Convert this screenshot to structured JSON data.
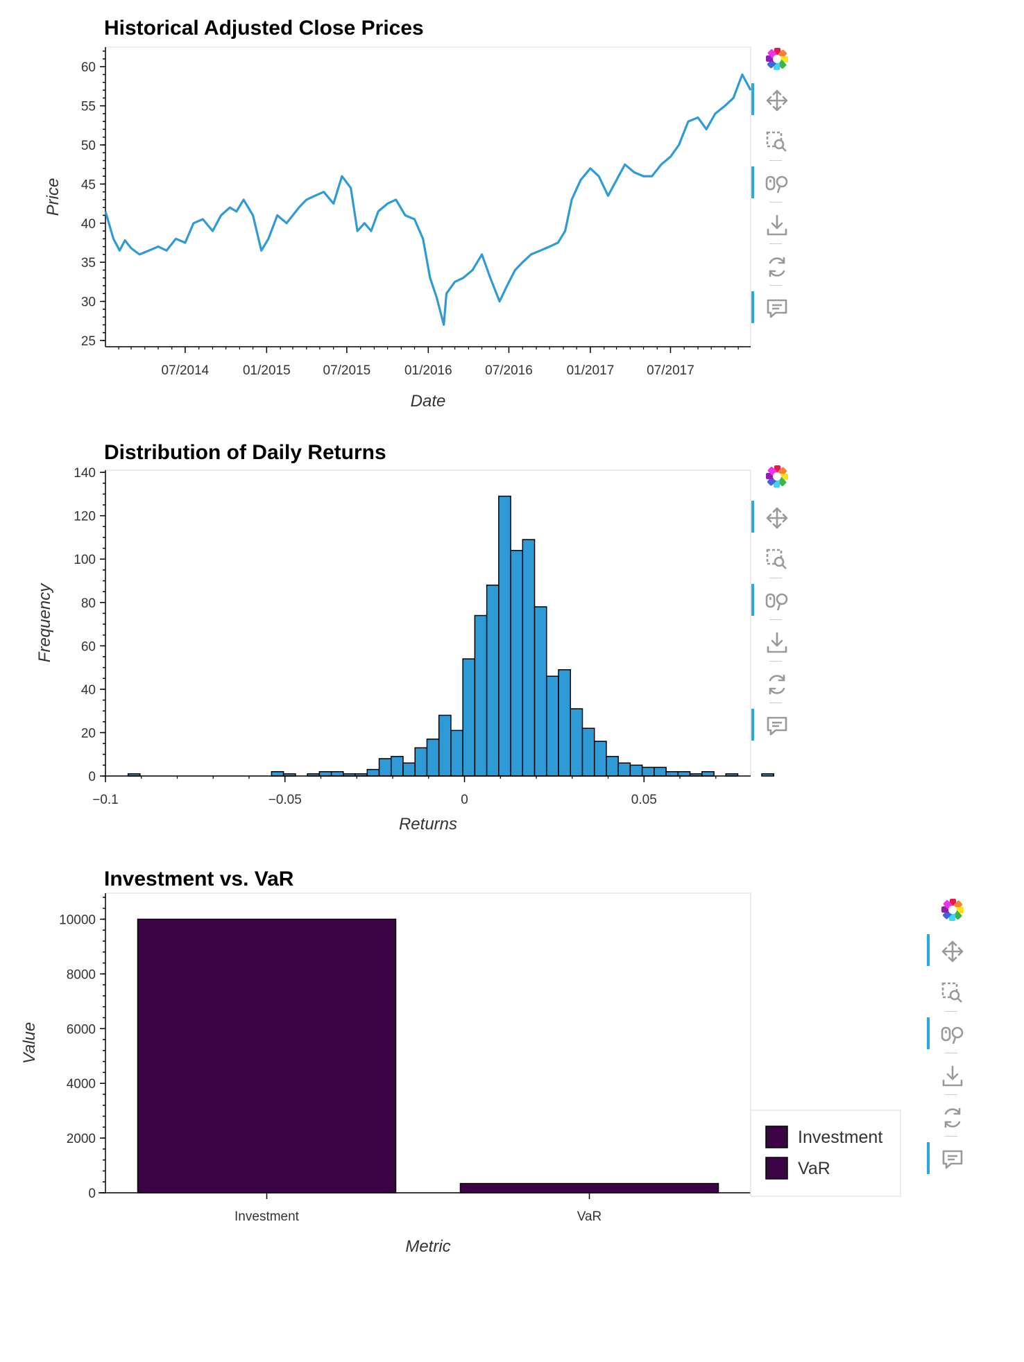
{
  "chart_data": [
    {
      "type": "line",
      "title": "Historical Adjusted Close Prices",
      "xlabel": "Date",
      "ylabel": "Price",
      "x_ticks": [
        "07/2014",
        "01/2015",
        "07/2015",
        "01/2016",
        "07/2016",
        "01/2017",
        "07/2017"
      ],
      "y_ticks": [
        25,
        30,
        35,
        40,
        45,
        50,
        55,
        60
      ],
      "xlim": [
        "2014-01-02",
        "2017-12-29"
      ],
      "ylim": [
        24.2,
        62.5
      ],
      "series": [
        {
          "color": "#2e9bd6",
          "x": [
            "2014-01-02",
            "2014-01-20",
            "2014-02-03",
            "2014-02-15",
            "2014-03-01",
            "2014-03-20",
            "2014-04-10",
            "2014-05-01",
            "2014-05-20",
            "2014-06-10",
            "2014-07-01",
            "2014-07-20",
            "2014-08-10",
            "2014-09-01",
            "2014-09-20",
            "2014-10-10",
            "2014-10-25",
            "2014-11-10",
            "2014-12-01",
            "2014-12-20",
            "2015-01-05",
            "2015-01-25",
            "2015-02-15",
            "2015-03-01",
            "2015-03-15",
            "2015-04-01",
            "2015-04-20",
            "2015-05-10",
            "2015-06-01",
            "2015-06-20",
            "2015-07-10",
            "2015-07-25",
            "2015-08-10",
            "2015-08-25",
            "2015-09-10",
            "2015-10-01",
            "2015-10-20",
            "2015-11-10",
            "2015-12-01",
            "2015-12-20",
            "2016-01-05",
            "2016-01-20",
            "2016-02-05",
            "2016-02-11",
            "2016-03-01",
            "2016-03-20",
            "2016-04-10",
            "2016-05-01",
            "2016-05-20",
            "2016-06-10",
            "2016-06-27",
            "2016-07-15",
            "2016-08-01",
            "2016-08-20",
            "2016-09-10",
            "2016-10-01",
            "2016-10-20",
            "2016-11-05",
            "2016-11-20",
            "2016-12-10",
            "2017-01-01",
            "2017-01-20",
            "2017-02-10",
            "2017-03-01",
            "2017-03-20",
            "2017-04-10",
            "2017-05-01",
            "2017-05-20",
            "2017-06-10",
            "2017-07-01",
            "2017-07-20",
            "2017-08-10",
            "2017-09-01",
            "2017-09-20",
            "2017-10-10",
            "2017-11-01",
            "2017-11-20",
            "2017-12-10",
            "2017-12-29"
          ],
          "y": [
            41.5,
            38,
            36.5,
            37.8,
            36.8,
            36,
            36.5,
            37,
            36.5,
            38,
            37.5,
            40,
            40.5,
            39,
            41,
            42,
            41.5,
            43,
            41,
            36.5,
            38,
            41,
            40,
            41,
            42,
            43,
            43.5,
            44,
            42.5,
            46,
            44.5,
            39,
            40,
            39,
            41.5,
            42.5,
            43,
            41,
            40.5,
            38,
            33,
            30.5,
            27,
            31,
            32.5,
            33,
            34,
            36,
            33,
            30,
            32,
            34,
            35,
            36,
            36.5,
            37,
            37.5,
            39,
            43,
            45.5,
            47,
            46,
            43.5,
            45.5,
            47.5,
            46.5,
            46,
            46,
            47.5,
            48.5,
            50,
            53,
            53.5,
            52,
            54,
            55,
            56,
            59,
            57
          ]
        }
      ]
    },
    {
      "type": "bar",
      "title": "Distribution of Daily Returns",
      "xlabel": "Returns",
      "ylabel": "Frequency",
      "x_ticks": [
        "−0.1",
        "−0.05",
        "0",
        "0.05"
      ],
      "x_tick_values": [
        -0.1,
        -0.05,
        0,
        0.05
      ],
      "y_ticks": [
        0,
        20,
        40,
        60,
        80,
        100,
        120,
        140
      ],
      "xlim": [
        -0.1,
        0.0797
      ],
      "ylim": [
        0,
        141
      ],
      "bin_start": -0.0937,
      "bin_width": 0.00333,
      "values": [
        1,
        0,
        0,
        0,
        0,
        0,
        0,
        0,
        0,
        0,
        0,
        0,
        2,
        1,
        0,
        1,
        2,
        2,
        1,
        1,
        3,
        8,
        9,
        6,
        13,
        17,
        28,
        21,
        54,
        74,
        88,
        129,
        104,
        109,
        78,
        46,
        49,
        31,
        22,
        16,
        9,
        6,
        5,
        4,
        4,
        2,
        2,
        1,
        2,
        0,
        1,
        0,
        0,
        1
      ],
      "fill": "#2e9bd6"
    },
    {
      "type": "bar",
      "title": "Investment vs. VaR",
      "xlabel": "Metric",
      "ylabel": "Value",
      "categories": [
        "Investment",
        "VaR"
      ],
      "values": [
        10000,
        340
      ],
      "y_ticks": [
        0,
        2000,
        4000,
        6000,
        8000,
        10000
      ],
      "ylim": [
        0,
        10950
      ],
      "fill": "#3b0444",
      "legend": {
        "placement": "right",
        "entries": [
          {
            "label": "Investment",
            "color": "#3b0444"
          },
          {
            "label": "VaR",
            "color": "#3b0444"
          }
        ]
      }
    }
  ],
  "toolbar": {
    "tools": [
      "bokeh-logo-icon",
      "pan-icon",
      "box-zoom-icon",
      "wheel-zoom-icon",
      "save-icon",
      "reset-icon",
      "hover-icon"
    ],
    "active_marker_color": "#26aae1"
  }
}
